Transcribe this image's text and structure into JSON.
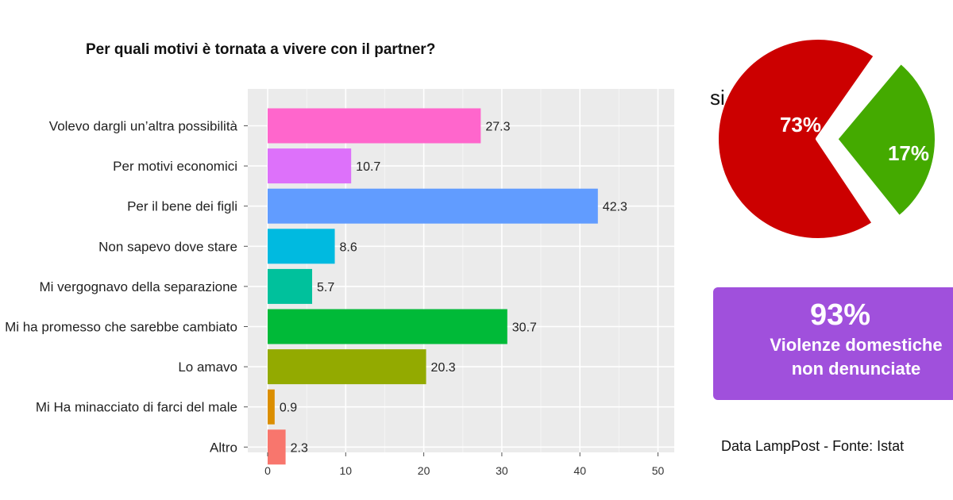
{
  "chart_data": [
    {
      "type": "bar",
      "orientation": "horizontal",
      "title": "Per quali motivi è tornata a vivere con il partner?",
      "categories": [
        "Volevo dargli un’altra possibilità",
        "Per motivi economici",
        "Per il bene dei figli",
        "Non sapevo dove stare",
        "Mi vergognavo della separazione",
        "Mi ha promesso che sarebbe cambiato",
        "Lo amavo",
        "Mi Ha minacciato di farci del male",
        "Altro"
      ],
      "values": [
        27.3,
        10.7,
        42.3,
        8.6,
        5.7,
        30.7,
        20.3,
        0.9,
        2.3
      ],
      "value_labels": [
        "27.3",
        "10.7",
        "42.3",
        "8.6",
        "5.7",
        "30.7",
        "20.3",
        "0.9",
        "2.3"
      ],
      "colors": [
        "#ff66cc",
        "#dd71fa",
        "#619cff",
        "#00bae0",
        "#00c19c",
        "#00ba38",
        "#93aa00",
        "#db8e00",
        "#f8766d"
      ],
      "x_ticks": [
        "0",
        "10",
        "20",
        "30",
        "40",
        "50"
      ],
      "xlim": [
        0,
        50
      ],
      "grid": true,
      "legend": "none"
    },
    {
      "type": "pie",
      "slices": [
        {
          "label": "73%",
          "value": 73,
          "color": "#cc0000",
          "exploded": false
        },
        {
          "label": "17%",
          "value": 17,
          "color": "#44aa00",
          "exploded": true
        }
      ],
      "outside_label": "si"
    }
  ],
  "callout": {
    "value": "93%",
    "line1": "Violenze domestiche",
    "line2": "non denunciate",
    "color": "#a050dc"
  },
  "source": "Data LampPost - Fonte: Istat"
}
